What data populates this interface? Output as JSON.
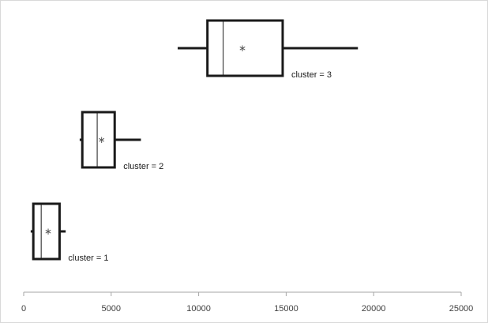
{
  "chart_data": {
    "type": "boxplot",
    "orientation": "horizontal",
    "title": "",
    "xlabel": "",
    "ylabel": "",
    "xlim": [
      0,
      25000
    ],
    "xticks": [
      0,
      5000,
      10000,
      15000,
      20000,
      25000
    ],
    "xtick_labels": [
      "0",
      "5000",
      "10000",
      "15000",
      "20000",
      "25000"
    ],
    "grid": false,
    "legend": "none",
    "colors": {
      "box_stroke": "#1a1a1a",
      "axis": "#a6a6a6",
      "mean_marker": "#555555"
    },
    "series": [
      {
        "label": "cluster = 1",
        "min": 400,
        "q1": 550,
        "median": 1000,
        "mean": 1400,
        "q3": 2050,
        "max": 2400
      },
      {
        "label": "cluster = 2",
        "min": 3200,
        "q1": 3350,
        "median": 4200,
        "mean": 4450,
        "q3": 5200,
        "max": 6700
      },
      {
        "label": "cluster = 3",
        "min": 8800,
        "q1": 10500,
        "median": 11400,
        "mean": 12500,
        "q3": 14800,
        "max": 19100
      }
    ]
  }
}
